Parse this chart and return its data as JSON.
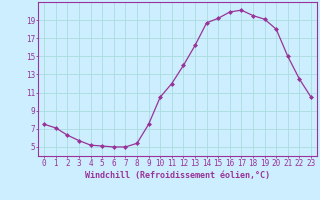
{
  "x": [
    0,
    1,
    2,
    3,
    4,
    5,
    6,
    7,
    8,
    9,
    10,
    11,
    12,
    13,
    14,
    15,
    16,
    17,
    18,
    19,
    20,
    21,
    22,
    23
  ],
  "y": [
    7.5,
    7.1,
    6.3,
    5.7,
    5.2,
    5.1,
    5.0,
    5.0,
    5.4,
    7.5,
    10.5,
    12.0,
    14.0,
    16.2,
    18.7,
    19.2,
    19.9,
    20.1,
    19.5,
    19.1,
    18.0,
    15.0,
    12.5,
    10.5
  ],
  "line_color": "#993399",
  "marker": "D",
  "marker_size": 2,
  "bg_color": "#cceeff",
  "grid_color": "#aadddd",
  "xlabel": "Windchill (Refroidissement éolien,°C)",
  "xlabel_color": "#993399",
  "tick_color": "#993399",
  "spine_color": "#993399",
  "ylim": [
    4.0,
    21.0
  ],
  "xlim": [
    -0.5,
    23.5
  ],
  "yticks": [
    5,
    7,
    9,
    11,
    13,
    15,
    17,
    19
  ],
  "xticks": [
    0,
    1,
    2,
    3,
    4,
    5,
    6,
    7,
    8,
    9,
    10,
    11,
    12,
    13,
    14,
    15,
    16,
    17,
    18,
    19,
    20,
    21,
    22,
    23
  ],
  "tick_fontsize": 5.5,
  "xlabel_fontsize": 6.0
}
